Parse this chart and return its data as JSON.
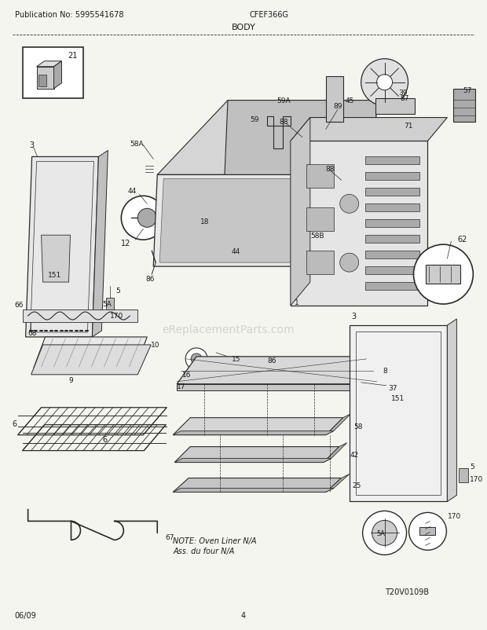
{
  "title": "BODY",
  "pub_no": "Publication No: 5995541678",
  "model": "CFEF366G",
  "date": "06/09",
  "page": "4",
  "diagram_id": "T20V0109B",
  "note_line1": "NOTE: Oven Liner N/A",
  "note_line2": "Ass. du four N/A",
  "watermark": "eReplacementParts.com",
  "bg_color": "#f5f5f0",
  "line_color": "#2a2a2a",
  "text_color": "#1a1a1a"
}
